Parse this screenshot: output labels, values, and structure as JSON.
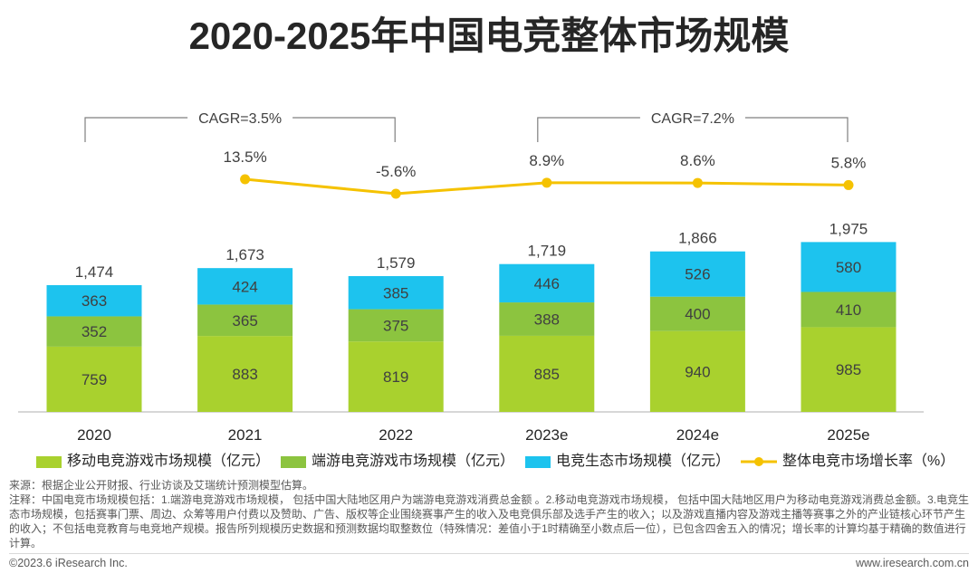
{
  "chart_data": {
    "type": "bar",
    "stacked": true,
    "title": "2020-2025年中国电竞整体市场规模",
    "categories": [
      "2020",
      "2021",
      "2022",
      "2023e",
      "2024e",
      "2025e"
    ],
    "series": [
      {
        "name": "移动电竞游戏市场规模（亿元）",
        "color": "#a9d12e",
        "values": [
          759,
          883,
          819,
          885,
          940,
          985
        ]
      },
      {
        "name": "端游电竞游戏市场规模（亿元）",
        "color": "#8cc43f",
        "values": [
          352,
          365,
          375,
          388,
          400,
          410
        ]
      },
      {
        "name": "电竞生态市场规模（亿元）",
        "color": "#1dc3ee",
        "values": [
          363,
          424,
          385,
          446,
          526,
          580
        ]
      }
    ],
    "totals": [
      1474,
      1673,
      1579,
      1719,
      1866,
      1975
    ],
    "total_labels": [
      "1,474",
      "1,673",
      "1,579",
      "1,719",
      "1,866",
      "1,975"
    ],
    "growth": {
      "name": "整体电竞市场增长率（%）",
      "color": "#f5c200",
      "values": [
        null,
        13.5,
        -5.6,
        8.9,
        8.6,
        5.8
      ],
      "labels": [
        null,
        "13.5%",
        "-5.6%",
        "8.9%",
        "8.6%",
        "5.8%"
      ]
    },
    "annotations": [
      {
        "label": "CAGR=3.5%",
        "from": "2020",
        "to": "2022"
      },
      {
        "label": "CAGR=7.2%",
        "from": "2023e",
        "to": "2025e"
      }
    ]
  },
  "notes": {
    "source": "来源：根据企业公开财报、行业访谈及艾瑞统计预测模型估算。",
    "note": "注释：中国电竞市场规模包括：1.端游电竞游戏市场规模， 包括中国大陆地区用户为端游电竞游戏消费总金额 。2.移动电竞游戏市场规模， 包括中国大陆地区用户为移动电竞游戏消费总金额。3.电竞生态市场规模，包括赛事门票、周边、众筹等用户付费以及赞助、广告、版权等企业围绕赛事产生的收入及电竞俱乐部及选手产生的收入；以及游戏直播内容及游戏主播等赛事之外的产业链核心环节产生的收入；不包括电竞教育与电竞地产规模。报告所列规模历史数据和预测数据均取整数位（特殊情况：差值小于1时精确至小数点后一位），已包含四舍五入的情况；增长率的计算均基于精确的数值进行计算。"
  },
  "footer": {
    "copyright": "©2023.6 iResearch Inc.",
    "website": "www.iresearch.com.cn"
  }
}
